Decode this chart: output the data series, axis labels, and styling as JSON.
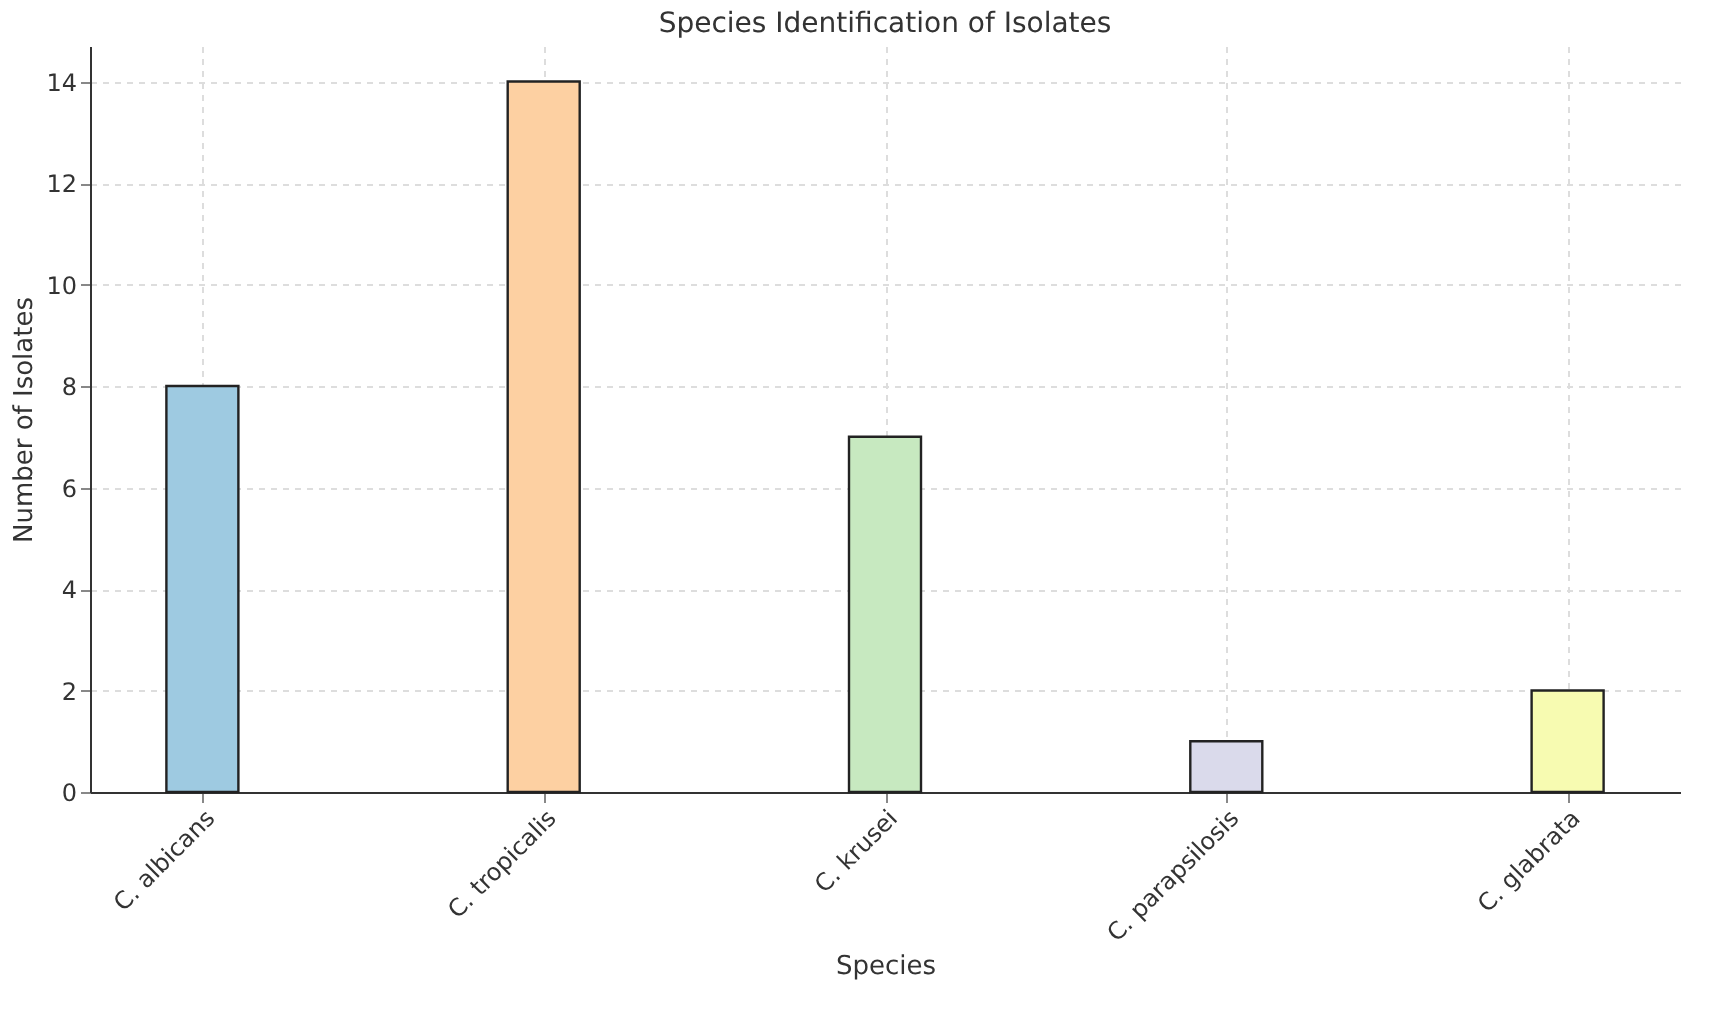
{
  "chart_data": {
    "type": "bar",
    "title": "Species Identification of Isolates",
    "xlabel": "Species",
    "ylabel": "Number of Isolates",
    "categories": [
      "C. albicans",
      "C. tropicalis",
      "C. krusei",
      "C. parapsilosis",
      "C. glabrata"
    ],
    "values": [
      8,
      14,
      7,
      1,
      2
    ],
    "colors": [
      "#9ecae1",
      "#fdd0a2",
      "#c7e9c0",
      "#dadaeb",
      "#f7fbb1"
    ],
    "ylim": [
      0,
      14.7
    ],
    "yticks": [
      0,
      2,
      4,
      6,
      8,
      10,
      12,
      14
    ],
    "grid": true
  }
}
